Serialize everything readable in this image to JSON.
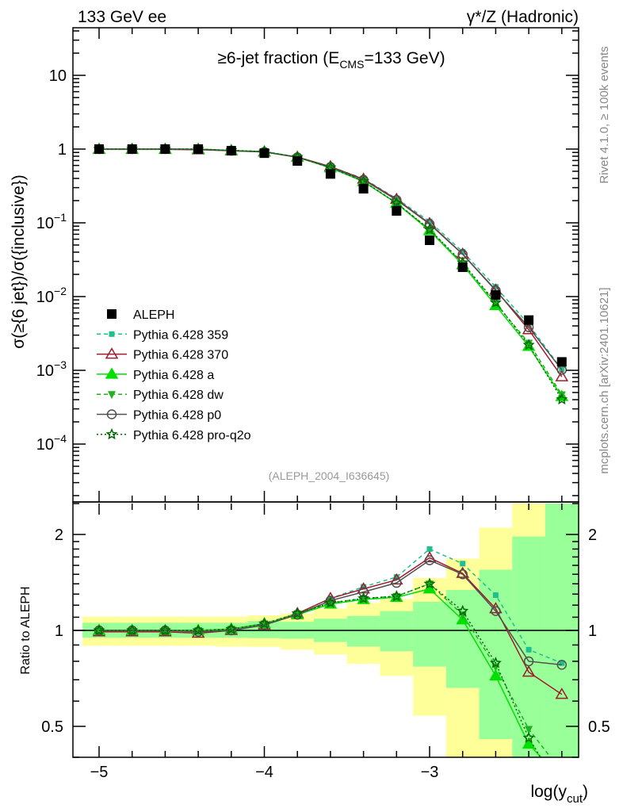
{
  "header": {
    "left": "133 GeV ee",
    "right": "γ*/Z (Hadronic)"
  },
  "side_text": {
    "rivet": "Rivet 4.1.0, ≥ 100k events",
    "mcplots": "mcplots.cern.ch [arXiv:2401.10621]"
  },
  "chart_data": {
    "type": "line",
    "title": {
      "pre": "≥6-jet fraction (E",
      "sub": "CMS",
      "post": "=133 GeV)"
    },
    "analysis": "(ALEPH_2004_I636645)",
    "ylabel": "σ(≥{6 jet})/σ({inclusive})",
    "ratio_ylabel": "Ratio to ALEPH",
    "xlabel": {
      "pre": "log(y",
      "sub": "cut",
      "post": ")"
    },
    "xlim": [
      -5.16,
      -2.1
    ],
    "ylim": [
      1.6e-05,
      44
    ],
    "ratio_ylim": [
      0.4,
      2.5
    ],
    "yscale": "log",
    "x_ticks": [
      "−5",
      "−4",
      "−3"
    ],
    "x_tick_values": [
      -5,
      -4,
      -3
    ],
    "y_ticks": [
      {
        "base": "10",
        "exp": ""
      },
      {
        "base": "1",
        "exp": ""
      },
      {
        "base": "10",
        "exp": "−1"
      },
      {
        "base": "10",
        "exp": "−2"
      },
      {
        "base": "10",
        "exp": "−3"
      },
      {
        "base": "10",
        "exp": "−4"
      }
    ],
    "y_tick_values": [
      10,
      1,
      0.1,
      0.01,
      0.001,
      0.0001
    ],
    "ratio_ticks": [
      "2",
      "1",
      "0.5"
    ],
    "ratio_tick_values": [
      2,
      1,
      0.5
    ],
    "legend_position": "middle-left",
    "x": [
      -5.0,
      -4.8,
      -4.6,
      -4.4,
      -4.2,
      -4.0,
      -3.8,
      -3.6,
      -3.4,
      -3.2,
      -3.0,
      -2.8,
      -2.6,
      -2.4,
      -2.2
    ],
    "data": {
      "name": "ALEPH",
      "color": "#000000",
      "values": [
        1.0,
        1.0,
        1.0,
        1.0,
        0.95,
        0.88,
        0.69,
        0.46,
        0.29,
        0.145,
        0.058,
        0.025,
        0.0105,
        0.0048,
        0.0013
      ]
    },
    "ratio_band_total": {
      "upper": [
        1.105,
        1.105,
        1.105,
        1.105,
        1.105,
        1.115,
        1.13,
        1.17,
        1.22,
        1.255,
        1.46,
        1.68,
        2.1,
        3.0,
        3.0
      ],
      "lower": [
        0.895,
        0.895,
        0.895,
        0.895,
        0.89,
        0.888,
        0.87,
        0.84,
        0.786,
        0.72,
        0.54,
        0.3,
        0.3,
        0.3,
        0.3
      ],
      "color": "#ffff99"
    },
    "ratio_band_stat": {
      "upper": [
        1.057,
        1.057,
        1.057,
        1.057,
        1.057,
        1.07,
        1.064,
        1.088,
        1.11,
        1.15,
        1.23,
        1.34,
        1.55,
        1.97,
        3.0
      ],
      "lower": [
        0.948,
        0.948,
        0.948,
        0.948,
        0.948,
        0.946,
        0.942,
        0.92,
        0.89,
        0.86,
        0.77,
        0.66,
        0.456,
        0.3,
        0.3
      ],
      "color": "#99ff99"
    },
    "series": [
      {
        "name": "Pythia 6.428 359",
        "color": "#1fbf8f",
        "dash": "5,4",
        "marker": "square-small",
        "ratio": [
          1.0,
          1.0,
          1.0,
          0.99,
          1.01,
          1.05,
          1.13,
          1.26,
          1.37,
          1.47,
          1.8,
          1.62,
          1.29,
          0.87,
          0.79
        ]
      },
      {
        "name": "Pythia 6.428 370",
        "color": "#a01c2c",
        "dash": "",
        "marker": "triangle-open",
        "ratio": [
          0.99,
          0.99,
          0.99,
          0.98,
          1.0,
          1.04,
          1.13,
          1.26,
          1.35,
          1.44,
          1.69,
          1.51,
          1.17,
          0.74,
          0.63
        ]
      },
      {
        "name": "Pythia 6.428 a",
        "color": "#00e000",
        "dash": "",
        "marker": "triangle",
        "ratio": [
          1.0,
          1.0,
          1.0,
          1.0,
          1.01,
          1.05,
          1.12,
          1.21,
          1.25,
          1.27,
          1.35,
          1.08,
          0.72,
          0.44,
          0.34
        ]
      },
      {
        "name": "Pythia 6.428 dw",
        "color": "#20b020",
        "dash": "5,4",
        "marker": "triangle-down",
        "ratio": [
          1.0,
          1.0,
          1.0,
          1.0,
          1.01,
          1.05,
          1.13,
          1.22,
          1.26,
          1.28,
          1.4,
          1.12,
          0.77,
          0.49,
          0.36
        ]
      },
      {
        "name": "Pythia 6.428 p0",
        "color": "#505050",
        "dash": "",
        "marker": "circle-open",
        "ratio": [
          1.0,
          1.0,
          1.0,
          0.99,
          1.0,
          1.04,
          1.12,
          1.24,
          1.32,
          1.41,
          1.66,
          1.5,
          1.15,
          0.8,
          0.78
        ]
      },
      {
        "name": "Pythia 6.428 pro-q2o",
        "color": "#006a00",
        "dash": "2,3",
        "marker": "star",
        "ratio": [
          1.0,
          1.0,
          1.0,
          1.0,
          1.01,
          1.05,
          1.13,
          1.22,
          1.26,
          1.28,
          1.4,
          1.15,
          0.79,
          0.46,
          0.31
        ]
      }
    ]
  }
}
